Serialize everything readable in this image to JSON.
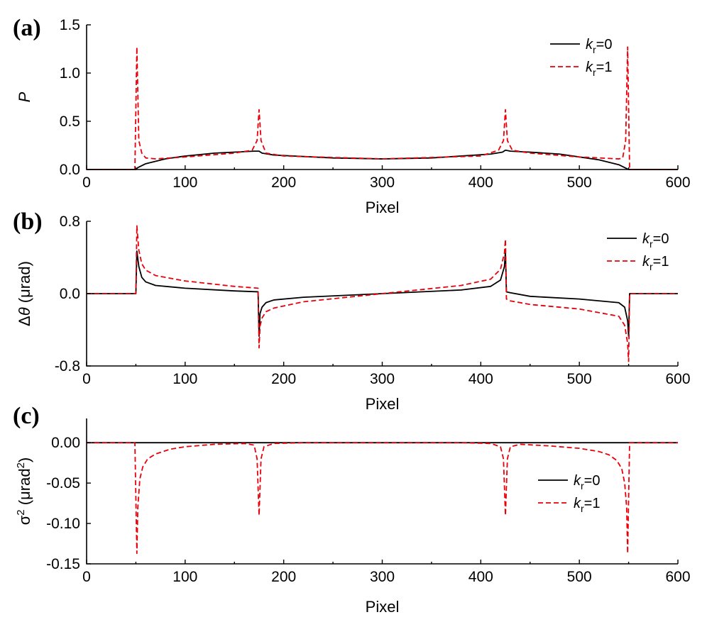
{
  "chart_data": [
    {
      "type": "line",
      "panel_label": "(a)",
      "xlabel": "Pixel",
      "ylabel": "P",
      "ylabel_italic": true,
      "xlim": [
        0,
        600
      ],
      "ylim": [
        0,
        1.5
      ],
      "xticks": [
        "0",
        "100",
        "200",
        "300",
        "400",
        "500",
        "600"
      ],
      "yticks": [
        "0.0",
        "0.5",
        "1.0",
        "1.5"
      ],
      "legend_position": "top-right",
      "series": [
        {
          "name": "k_r=0",
          "legend": {
            "var": "k",
            "sub": "r",
            "rest": "=0"
          },
          "color": "#000000",
          "style": "solid",
          "x": [
            0,
            50,
            52,
            60,
            80,
            100,
            130,
            150,
            170,
            175,
            178,
            190,
            250,
            300,
            350,
            410,
            422,
            425,
            430,
            450,
            480,
            500,
            520,
            540,
            548,
            550,
            600
          ],
          "y": [
            0,
            0,
            0.02,
            0.06,
            0.11,
            0.14,
            0.17,
            0.18,
            0.19,
            0.19,
            0.17,
            0.15,
            0.12,
            0.11,
            0.12,
            0.16,
            0.18,
            0.2,
            0.19,
            0.18,
            0.16,
            0.13,
            0.1,
            0.05,
            0.01,
            0,
            0
          ]
        },
        {
          "name": "k_r=1",
          "legend": {
            "var": "k",
            "sub": "r",
            "rest": "=1"
          },
          "color": "#e8000b",
          "style": "dashed",
          "x": [
            0,
            49,
            51,
            53,
            56,
            60,
            70,
            100,
            150,
            168,
            173,
            175,
            177,
            182,
            200,
            300,
            400,
            418,
            423,
            425,
            427,
            432,
            450,
            500,
            540,
            544,
            547,
            549,
            551,
            600
          ],
          "y": [
            0,
            0,
            1.27,
            0.3,
            0.17,
            0.12,
            0.11,
            0.13,
            0.17,
            0.2,
            0.3,
            0.62,
            0.3,
            0.17,
            0.14,
            0.11,
            0.14,
            0.2,
            0.3,
            0.62,
            0.3,
            0.2,
            0.17,
            0.13,
            0.11,
            0.12,
            0.3,
            1.27,
            0,
            0
          ]
        }
      ]
    },
    {
      "type": "line",
      "panel_label": "(b)",
      "xlabel": "Pixel",
      "ylabel": "Δθ (μrad)",
      "ylabel_parts": [
        "Δ",
        "θ",
        " (μrad)"
      ],
      "xlim": [
        0,
        600
      ],
      "ylim": [
        -0.8,
        0.8
      ],
      "xticks": [
        "0",
        "100",
        "200",
        "300",
        "400",
        "500",
        "600"
      ],
      "yticks": [
        "-0.8",
        "0.0",
        "0.8"
      ],
      "legend_position": "top-right",
      "series": [
        {
          "name": "k_r=0",
          "legend": {
            "var": "k",
            "sub": "r",
            "rest": "=0"
          },
          "color": "#000000",
          "style": "solid",
          "x": [
            0,
            50,
            51,
            53,
            56,
            60,
            70,
            100,
            150,
            174,
            175,
            176,
            178,
            182,
            190,
            220,
            300,
            380,
            410,
            420,
            424,
            425,
            426,
            430,
            450,
            500,
            540,
            546,
            549,
            550,
            551,
            600
          ],
          "y": [
            0,
            0,
            0.47,
            0.3,
            0.18,
            0.13,
            0.09,
            0.06,
            0.03,
            0.02,
            -0.47,
            -0.22,
            -0.15,
            -0.1,
            -0.07,
            -0.04,
            0,
            0.04,
            0.08,
            0.15,
            0.3,
            0.47,
            0.02,
            0.01,
            -0.03,
            -0.06,
            -0.1,
            -0.15,
            -0.3,
            -0.47,
            0,
            0
          ]
        },
        {
          "name": "k_r=1",
          "legend": {
            "var": "k",
            "sub": "r",
            "rest": "=1"
          },
          "color": "#e8000b",
          "style": "dashed",
          "x": [
            0,
            50,
            51,
            53,
            56,
            60,
            70,
            100,
            150,
            174,
            175,
            176,
            178,
            182,
            190,
            220,
            300,
            380,
            410,
            420,
            424,
            425,
            426,
            430,
            450,
            500,
            540,
            546,
            549,
            550,
            551,
            600
          ],
          "y": [
            0,
            0,
            0.75,
            0.48,
            0.33,
            0.26,
            0.2,
            0.14,
            0.08,
            0.06,
            -0.6,
            -0.36,
            -0.27,
            -0.2,
            -0.16,
            -0.09,
            0,
            0.09,
            0.16,
            0.27,
            0.45,
            0.6,
            -0.06,
            -0.08,
            -0.12,
            -0.17,
            -0.25,
            -0.35,
            -0.55,
            -0.75,
            0,
            0
          ]
        }
      ]
    },
    {
      "type": "line",
      "panel_label": "(c)",
      "xlabel": "Pixel",
      "ylabel": "σ2 (μrad2)",
      "ylabel_parts": [
        "σ",
        "2",
        " (μrad",
        "2",
        ")"
      ],
      "xlim": [
        0,
        600
      ],
      "ylim": [
        -0.15,
        0.03
      ],
      "xticks": [
        "0",
        "100",
        "200",
        "300",
        "400",
        "500",
        "600"
      ],
      "yticks": [
        "-0.15",
        "-0.10",
        "-0.05",
        "0.00"
      ],
      "legend_position": "right",
      "series": [
        {
          "name": "k_r=0",
          "legend": {
            "var": "k",
            "sub": "r",
            "rest": "=0"
          },
          "color": "#000000",
          "style": "solid",
          "x": [
            0,
            600
          ],
          "y": [
            0,
            0
          ]
        },
        {
          "name": "k_r=1",
          "legend": {
            "var": "k",
            "sub": "r",
            "rest": "=1"
          },
          "color": "#e8000b",
          "style": "dashed",
          "x": [
            0,
            49,
            51,
            52,
            54,
            57,
            62,
            70,
            85,
            100,
            130,
            160,
            170,
            173,
            175,
            177,
            180,
            190,
            220,
            300,
            380,
            410,
            420,
            423,
            425,
            427,
            430,
            440,
            470,
            500,
            520,
            530,
            538,
            543,
            546,
            548,
            549,
            551,
            600
          ],
          "y": [
            0,
            0,
            -0.137,
            -0.08,
            -0.045,
            -0.03,
            -0.02,
            -0.014,
            -0.008,
            -0.005,
            -0.002,
            -0.001,
            -0.003,
            -0.02,
            -0.09,
            -0.02,
            -0.005,
            -0.001,
            0,
            0,
            0,
            -0.001,
            -0.005,
            -0.02,
            -0.09,
            -0.02,
            -0.005,
            -0.002,
            -0.004,
            -0.007,
            -0.011,
            -0.015,
            -0.022,
            -0.032,
            -0.05,
            -0.08,
            -0.137,
            0,
            0
          ]
        }
      ]
    }
  ]
}
